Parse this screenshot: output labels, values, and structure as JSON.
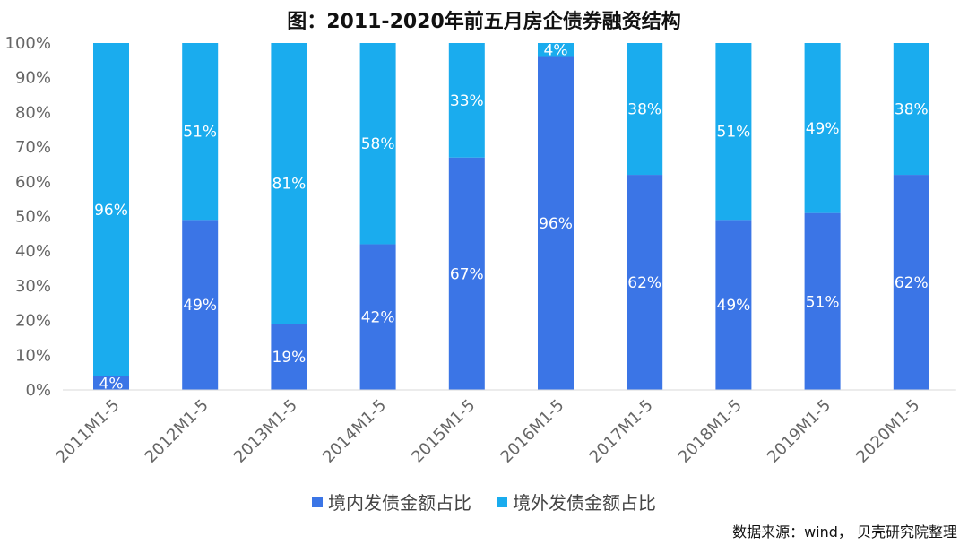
{
  "chart_data": {
    "type": "bar",
    "stacked": true,
    "title": "图：2011-2020年前五月房企债券融资结构",
    "categories": [
      "2011M1-5",
      "2012M1-5",
      "2013M1-5",
      "2014M1-5",
      "2015M1-5",
      "2016M1-5",
      "2017M1-5",
      "2018M1-5",
      "2019M1-5",
      "2020M1-5"
    ],
    "series": [
      {
        "name": "境内发债金额占比",
        "color": "#3B75E6",
        "values": [
          4,
          49,
          19,
          42,
          67,
          96,
          62,
          49,
          51,
          62
        ],
        "labels": [
          "4%",
          "49%",
          "19%",
          "42%",
          "67%",
          "96%",
          "62%",
          "49%",
          "51%",
          "62%"
        ]
      },
      {
        "name": "境外发债金额占比",
        "color": "#1AACEE",
        "values": [
          96,
          51,
          81,
          58,
          33,
          4,
          38,
          51,
          49,
          38
        ],
        "labels": [
          "96%",
          "51%",
          "81%",
          "58%",
          "33%",
          "4%",
          "38%",
          "51%",
          "49%",
          "38%"
        ]
      }
    ],
    "ylim": [
      0,
      100
    ],
    "yticks": [
      "0%",
      "10%",
      "20%",
      "30%",
      "40%",
      "50%",
      "60%",
      "70%",
      "80%",
      "90%",
      "100%"
    ],
    "grid": false,
    "legend": "bottom"
  },
  "source": "数据来源：wind， 贝壳研究院整理"
}
